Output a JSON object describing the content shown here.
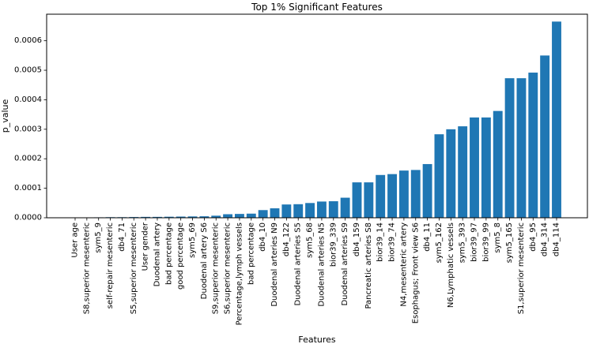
{
  "chart_data": {
    "type": "bar",
    "title": "Top 1% Significant Features",
    "xlabel": "Features",
    "ylabel": "p_value",
    "ylim": [
      0,
      0.00069
    ],
    "yticks": [
      "0.0000",
      "0.0001",
      "0.0002",
      "0.0003",
      "0.0004",
      "0.0005",
      "0.0006"
    ],
    "grid": false,
    "bar_color": "#1f77b4",
    "categories": [
      "User age",
      "S8,superior mesenteric",
      "sym5_9",
      "self-repair mesenteric",
      "db4_71",
      "S5,superior mesenteric",
      "User gender",
      "Duodenal artery",
      "bad percentage",
      "good percentage",
      "sym5_69",
      "Duodenal artery S6",
      "S9,superior mesenteric",
      "S6,superior mesenteric",
      "Percentage,lymph vessels",
      "bad percentage",
      "db4_10",
      "Duodenal arteries N9",
      "db4_122",
      "Duodenal arteries S5",
      "sym5_68",
      "Duodenal arteries N5",
      "bior39_339",
      "Duodenal arteries S9",
      "db4_159",
      "Pancreatic arteries S8",
      "bior39_14",
      "bior39_74",
      "N4,mesenteric artery",
      "Esophagus; Front view S6",
      "db4_11",
      "sym5_162",
      "N6,Lymphatic vessels",
      "sym5_393",
      "bior39_97",
      "bior39_99",
      "sym5_8",
      "sym5_165",
      "S1,superior mesenteric",
      "db4_95",
      "db4_314",
      "db4_114"
    ],
    "values": [
      5e-07,
      1e-06,
      1.5e-06,
      2e-06,
      2e-06,
      2.5e-06,
      3e-06,
      3e-06,
      3.5e-06,
      4e-06,
      4.5e-06,
      5e-06,
      7e-06,
      1.2e-05,
      1.3e-05,
      1.4e-05,
      2.6e-05,
      3.2e-05,
      4.5e-05,
      4.6e-05,
      5e-05,
      5.5e-05,
      5.6e-05,
      6.8e-05,
      0.00012,
      0.00012,
      0.000145,
      0.000148,
      0.00016,
      0.000162,
      0.000182,
      0.000283,
      0.0003,
      0.00031,
      0.00034,
      0.00034,
      0.000362,
      0.000473,
      0.000473,
      0.000492,
      0.00055,
      0.000665
    ]
  }
}
